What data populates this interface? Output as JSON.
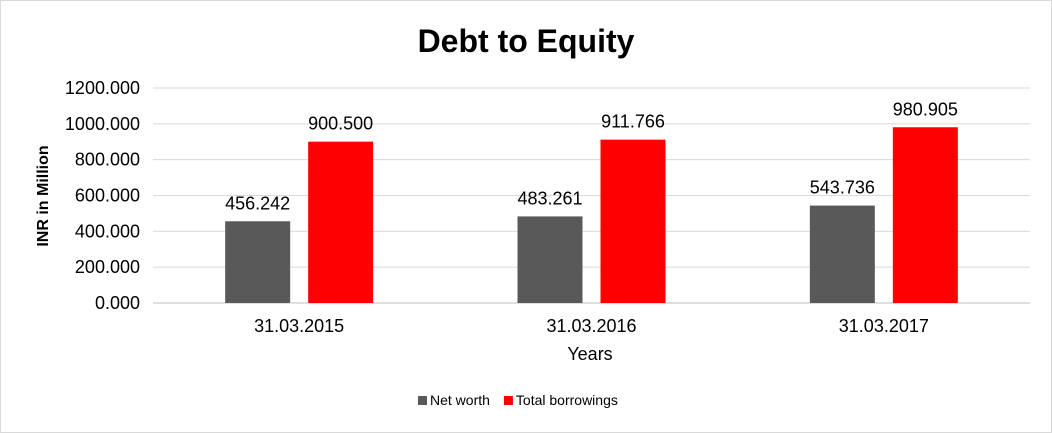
{
  "chart_data": {
    "type": "bar",
    "title": "Debt to Equity",
    "xlabel": "Years",
    "ylabel": "INR in Million",
    "categories": [
      "31.03.2015",
      "31.03.2016",
      "31.03.2017"
    ],
    "series": [
      {
        "name": "Net worth",
        "values": [
          456.242,
          483.261,
          543.736
        ],
        "color": "#595959"
      },
      {
        "name": "Total borrowings",
        "values": [
          900.5,
          911.766,
          980.905
        ],
        "color": "#ff0000"
      }
    ],
    "ylim": [
      0,
      1200
    ],
    "yticks": [
      "0.000",
      "200.000",
      "400.000",
      "600.000",
      "800.000",
      "1000.000",
      "1200.000"
    ],
    "data_labels": [
      [
        "456.242",
        "483.261",
        "543.736"
      ],
      [
        "900.500",
        "911.766",
        "980.905"
      ]
    ],
    "grid": true,
    "legend_position": "bottom"
  }
}
